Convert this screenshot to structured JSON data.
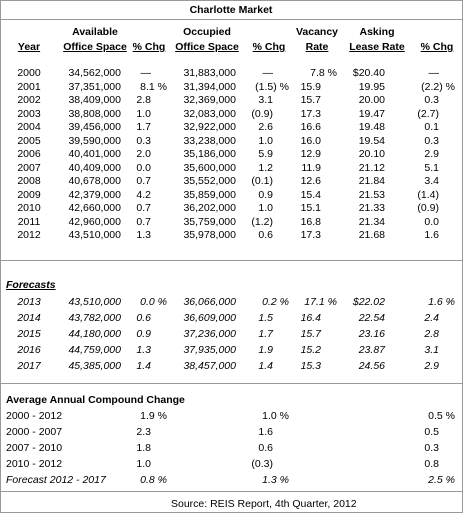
{
  "title": "Charlotte Market",
  "columns": [
    {
      "bottom": "Year"
    },
    {
      "top": "Available",
      "bottom": "Office Space"
    },
    {
      "bottom": "% Chg"
    },
    {
      "top": "Occupied",
      "bottom": "Office Space"
    },
    {
      "bottom": "% Chg"
    },
    {
      "top": "Vacancy",
      "bottom": "Rate"
    },
    {
      "top": "Asking",
      "bottom": "Lease Rate"
    },
    {
      "bottom": "% Chg"
    }
  ],
  "history": [
    [
      "2000",
      "34,562,000",
      "—",
      "31,883,000",
      "—",
      "7.8 %",
      "$20.40",
      "—"
    ],
    [
      "2001",
      "37,351,000",
      "8.1 %",
      "31,394,000",
      "(1.5) %",
      "15.9",
      "19.95",
      "(2.2) %"
    ],
    [
      "2002",
      "38,409,000",
      "2.8",
      "32,369,000",
      "3.1",
      "15.7",
      "20.00",
      "0.3"
    ],
    [
      "2003",
      "38,808,000",
      "1.0",
      "32,083,000",
      "(0.9)",
      "17.3",
      "19.47",
      "(2.7)"
    ],
    [
      "2004",
      "39,456,000",
      "1.7",
      "32,922,000",
      "2.6",
      "16.6",
      "19.48",
      "0.1"
    ],
    [
      "2005",
      "39,590,000",
      "0.3",
      "33,238,000",
      "1.0",
      "16.0",
      "19.54",
      "0.3"
    ],
    [
      "2006",
      "40,401,000",
      "2.0",
      "35,186,000",
      "5.9",
      "12.9",
      "20.10",
      "2.9"
    ],
    [
      "2007",
      "40,409,000",
      "0.0",
      "35,600,000",
      "1.2",
      "11.9",
      "21.12",
      "5.1"
    ],
    [
      "2008",
      "40,678,000",
      "0.7",
      "35,552,000",
      "(0.1)",
      "12.6",
      "21.84",
      "3.4"
    ],
    [
      "2009",
      "42,379,000",
      "4.2",
      "35,859,000",
      "0.9",
      "15.4",
      "21.53",
      "(1.4)"
    ],
    [
      "2010",
      "42,660,000",
      "0.7",
      "36,202,000",
      "1.0",
      "15.1",
      "21.33",
      "(0.9)"
    ],
    [
      "2011",
      "42,960,000",
      "0.7",
      "35,759,000",
      "(1.2)",
      "16.8",
      "21.34",
      "0.0"
    ],
    [
      "2012",
      "43,510,000",
      "1.3",
      "35,978,000",
      "0.6",
      "17.3",
      "21.68",
      "1.6"
    ]
  ],
  "forecasts_label": "Forecasts",
  "forecasts": [
    [
      "2013",
      "43,510,000",
      "0.0 %",
      "36,066,000",
      "0.2 %",
      "17.1 %",
      "$22.02",
      "1.6 %"
    ],
    [
      "2014",
      "43,782,000",
      "0.6",
      "36,609,000",
      "1.5",
      "16.4",
      "22.54",
      "2.4"
    ],
    [
      "2015",
      "44,180,000",
      "0.9",
      "37,236,000",
      "1.7",
      "15.7",
      "23.16",
      "2.8"
    ],
    [
      "2016",
      "44,759,000",
      "1.3",
      "37,935,000",
      "1.9",
      "15.2",
      "23.87",
      "3.1"
    ],
    [
      "2017",
      "45,385,000",
      "1.4",
      "38,457,000",
      "1.4",
      "15.3",
      "24.56",
      "2.9"
    ]
  ],
  "compound_label": "Average Annual Compound Change",
  "compound": [
    [
      "2000 - 2012",
      "1.9 %",
      "1.0 %",
      "0.5 %"
    ],
    [
      "2000 - 2007",
      "2.3",
      "1.6",
      "0.5"
    ],
    [
      "2007 - 2010",
      "1.8",
      "0.6",
      "0.3"
    ],
    [
      "2010 - 2012",
      "1.0",
      "(0.3)",
      "0.8"
    ],
    [
      "Forecast 2012 - 2017",
      "0.8 %",
      "1.3 %",
      "2.5 %"
    ]
  ],
  "source": "Source: REIS Report, 4th Quarter, 2012"
}
